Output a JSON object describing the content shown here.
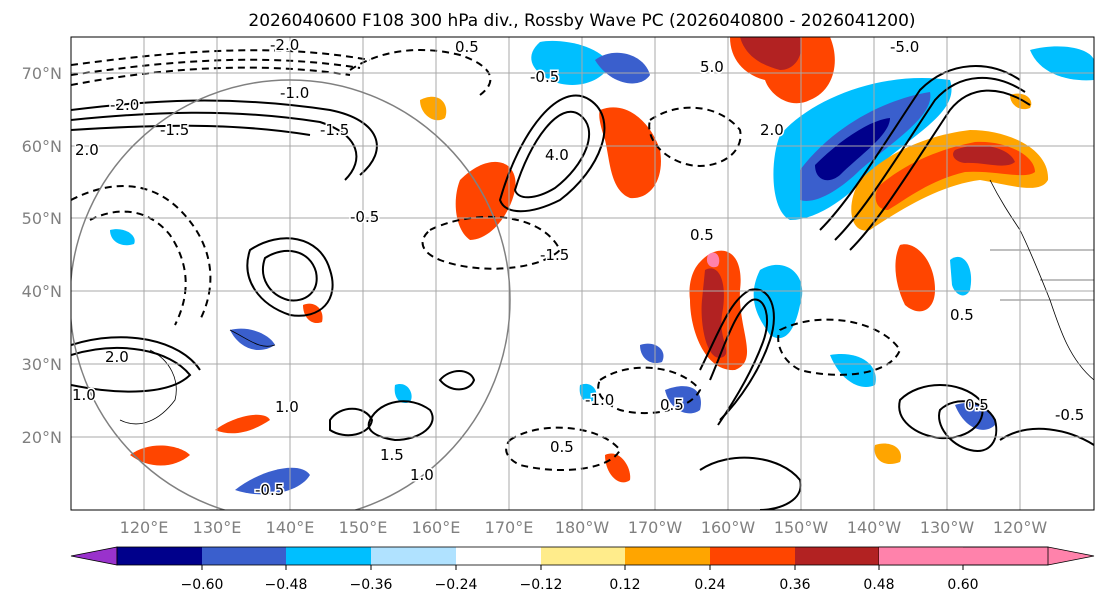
{
  "title": "2026040600 F108 300 hPa div., Rossby Wave PC (2026040800 - 2026041200)",
  "map": {
    "lat_ticks": [
      "70°N",
      "60°N",
      "50°N",
      "40°N",
      "30°N",
      "20°N"
    ],
    "lon_ticks": [
      "120°E",
      "130°E",
      "140°E",
      "150°E",
      "160°E",
      "170°E",
      "180°W",
      "170°W",
      "160°W",
      "150°W",
      "140°W",
      "130°W",
      "120°W"
    ],
    "contour_labels": [
      "-2.0",
      "-1.5",
      "-1.0",
      "-0.5",
      "0.5",
      "1.0",
      "1.5",
      "2.0",
      "4.0",
      "5.0",
      "-5.0"
    ]
  },
  "colorbar": {
    "ticks": [
      "−0.60",
      "−0.48",
      "−0.36",
      "−0.24",
      "−0.12",
      "0.12",
      "0.24",
      "0.36",
      "0.48",
      "0.60"
    ],
    "colors": [
      "#9932cc",
      "#00008b",
      "#3a5fcd",
      "#00bfff",
      "#b0e2ff",
      "#ffffff",
      "#ffec8b",
      "#ffa500",
      "#ff4500",
      "#b22222",
      "#ff82ab"
    ]
  }
}
